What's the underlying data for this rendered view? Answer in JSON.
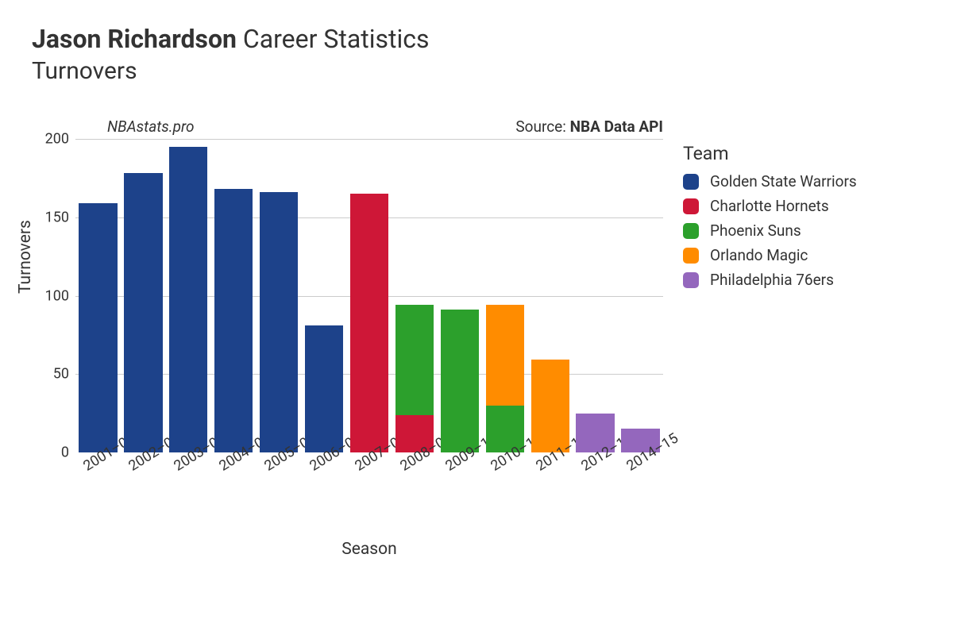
{
  "title": {
    "player_name": "Jason Richardson",
    "suffix": "Career Statistics",
    "subtitle": "Turnovers"
  },
  "meta": {
    "attribution": "NBAstats.pro",
    "source_prefix": "Source: ",
    "source_name": "NBA Data API"
  },
  "chart": {
    "type": "stacked-bar",
    "x_label": "Season",
    "y_label": "Turnovers",
    "y_min": 0,
    "y_max": 200,
    "y_ticks": [
      0,
      50,
      100,
      150,
      200
    ],
    "grid_color": "#cccccc",
    "background_color": "#ffffff",
    "bar_width_ratio": 0.85,
    "seasons": [
      "2001–02",
      "2002–03",
      "2003–04",
      "2004–05",
      "2005–06",
      "2006–07",
      "2007–08",
      "2008–09",
      "2009–10",
      "2010–11",
      "2011–12",
      "2012–13",
      "2014–15"
    ],
    "stacks": [
      [
        {
          "team": "gsw",
          "value": 159
        }
      ],
      [
        {
          "team": "gsw",
          "value": 178
        }
      ],
      [
        {
          "team": "gsw",
          "value": 195
        }
      ],
      [
        {
          "team": "gsw",
          "value": 168
        }
      ],
      [
        {
          "team": "gsw",
          "value": 166
        }
      ],
      [
        {
          "team": "gsw",
          "value": 81
        }
      ],
      [
        {
          "team": "cha",
          "value": 165
        }
      ],
      [
        {
          "team": "cha",
          "value": 24
        },
        {
          "team": "phx",
          "value": 70
        }
      ],
      [
        {
          "team": "phx",
          "value": 91
        }
      ],
      [
        {
          "team": "phx",
          "value": 30
        },
        {
          "team": "orl",
          "value": 64
        }
      ],
      [
        {
          "team": "orl",
          "value": 59
        }
      ],
      [
        {
          "team": "phi",
          "value": 25
        }
      ],
      [
        {
          "team": "phi",
          "value": 15
        }
      ]
    ]
  },
  "legend": {
    "title": "Team",
    "items": [
      {
        "key": "gsw",
        "label": "Golden State Warriors",
        "color": "#1d428a"
      },
      {
        "key": "cha",
        "label": "Charlotte Hornets",
        "color": "#ce1737"
      },
      {
        "key": "phx",
        "label": "Phoenix Suns",
        "color": "#2ca02c"
      },
      {
        "key": "orl",
        "label": "Orlando Magic",
        "color": "#ff8c00"
      },
      {
        "key": "phi",
        "label": "Philadelphia 76ers",
        "color": "#9467bd"
      }
    ]
  },
  "typography": {
    "title_fontsize": 32,
    "subtitle_fontsize": 30,
    "axis_title_fontsize": 21,
    "tick_fontsize": 18,
    "legend_title_fontsize": 23,
    "legend_item_fontsize": 19
  }
}
